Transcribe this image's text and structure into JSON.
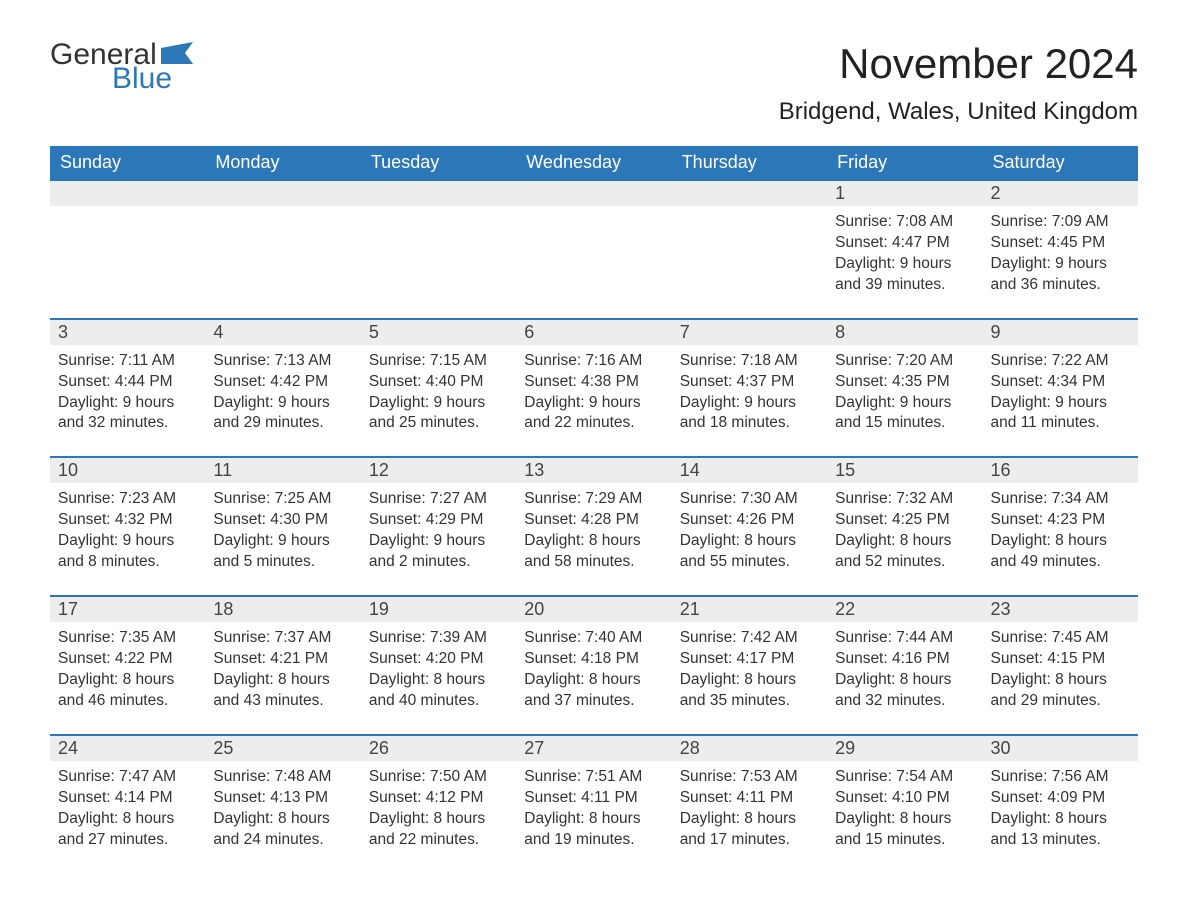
{
  "logo": {
    "text1": "General",
    "text2": "Blue",
    "shape_color": "#2c77b8",
    "text1_color": "#333333",
    "text2_color": "#2c77b8"
  },
  "title": "November 2024",
  "location": "Bridgend, Wales, United Kingdom",
  "header_bg": "#2c77b8",
  "header_fg": "#ffffff",
  "daynum_bg": "#ededed",
  "border_color": "#2c77b8",
  "columns": [
    "Sunday",
    "Monday",
    "Tuesday",
    "Wednesday",
    "Thursday",
    "Friday",
    "Saturday"
  ],
  "weeks": [
    [
      null,
      null,
      null,
      null,
      null,
      {
        "n": "1",
        "sr": "Sunrise: 7:08 AM",
        "ss": "Sunset: 4:47 PM",
        "d1": "Daylight: 9 hours",
        "d2": "and 39 minutes."
      },
      {
        "n": "2",
        "sr": "Sunrise: 7:09 AM",
        "ss": "Sunset: 4:45 PM",
        "d1": "Daylight: 9 hours",
        "d2": "and 36 minutes."
      }
    ],
    [
      {
        "n": "3",
        "sr": "Sunrise: 7:11 AM",
        "ss": "Sunset: 4:44 PM",
        "d1": "Daylight: 9 hours",
        "d2": "and 32 minutes."
      },
      {
        "n": "4",
        "sr": "Sunrise: 7:13 AM",
        "ss": "Sunset: 4:42 PM",
        "d1": "Daylight: 9 hours",
        "d2": "and 29 minutes."
      },
      {
        "n": "5",
        "sr": "Sunrise: 7:15 AM",
        "ss": "Sunset: 4:40 PM",
        "d1": "Daylight: 9 hours",
        "d2": "and 25 minutes."
      },
      {
        "n": "6",
        "sr": "Sunrise: 7:16 AM",
        "ss": "Sunset: 4:38 PM",
        "d1": "Daylight: 9 hours",
        "d2": "and 22 minutes."
      },
      {
        "n": "7",
        "sr": "Sunrise: 7:18 AM",
        "ss": "Sunset: 4:37 PM",
        "d1": "Daylight: 9 hours",
        "d2": "and 18 minutes."
      },
      {
        "n": "8",
        "sr": "Sunrise: 7:20 AM",
        "ss": "Sunset: 4:35 PM",
        "d1": "Daylight: 9 hours",
        "d2": "and 15 minutes."
      },
      {
        "n": "9",
        "sr": "Sunrise: 7:22 AM",
        "ss": "Sunset: 4:34 PM",
        "d1": "Daylight: 9 hours",
        "d2": "and 11 minutes."
      }
    ],
    [
      {
        "n": "10",
        "sr": "Sunrise: 7:23 AM",
        "ss": "Sunset: 4:32 PM",
        "d1": "Daylight: 9 hours",
        "d2": "and 8 minutes."
      },
      {
        "n": "11",
        "sr": "Sunrise: 7:25 AM",
        "ss": "Sunset: 4:30 PM",
        "d1": "Daylight: 9 hours",
        "d2": "and 5 minutes."
      },
      {
        "n": "12",
        "sr": "Sunrise: 7:27 AM",
        "ss": "Sunset: 4:29 PM",
        "d1": "Daylight: 9 hours",
        "d2": "and 2 minutes."
      },
      {
        "n": "13",
        "sr": "Sunrise: 7:29 AM",
        "ss": "Sunset: 4:28 PM",
        "d1": "Daylight: 8 hours",
        "d2": "and 58 minutes."
      },
      {
        "n": "14",
        "sr": "Sunrise: 7:30 AM",
        "ss": "Sunset: 4:26 PM",
        "d1": "Daylight: 8 hours",
        "d2": "and 55 minutes."
      },
      {
        "n": "15",
        "sr": "Sunrise: 7:32 AM",
        "ss": "Sunset: 4:25 PM",
        "d1": "Daylight: 8 hours",
        "d2": "and 52 minutes."
      },
      {
        "n": "16",
        "sr": "Sunrise: 7:34 AM",
        "ss": "Sunset: 4:23 PM",
        "d1": "Daylight: 8 hours",
        "d2": "and 49 minutes."
      }
    ],
    [
      {
        "n": "17",
        "sr": "Sunrise: 7:35 AM",
        "ss": "Sunset: 4:22 PM",
        "d1": "Daylight: 8 hours",
        "d2": "and 46 minutes."
      },
      {
        "n": "18",
        "sr": "Sunrise: 7:37 AM",
        "ss": "Sunset: 4:21 PM",
        "d1": "Daylight: 8 hours",
        "d2": "and 43 minutes."
      },
      {
        "n": "19",
        "sr": "Sunrise: 7:39 AM",
        "ss": "Sunset: 4:20 PM",
        "d1": "Daylight: 8 hours",
        "d2": "and 40 minutes."
      },
      {
        "n": "20",
        "sr": "Sunrise: 7:40 AM",
        "ss": "Sunset: 4:18 PM",
        "d1": "Daylight: 8 hours",
        "d2": "and 37 minutes."
      },
      {
        "n": "21",
        "sr": "Sunrise: 7:42 AM",
        "ss": "Sunset: 4:17 PM",
        "d1": "Daylight: 8 hours",
        "d2": "and 35 minutes."
      },
      {
        "n": "22",
        "sr": "Sunrise: 7:44 AM",
        "ss": "Sunset: 4:16 PM",
        "d1": "Daylight: 8 hours",
        "d2": "and 32 minutes."
      },
      {
        "n": "23",
        "sr": "Sunrise: 7:45 AM",
        "ss": "Sunset: 4:15 PM",
        "d1": "Daylight: 8 hours",
        "d2": "and 29 minutes."
      }
    ],
    [
      {
        "n": "24",
        "sr": "Sunrise: 7:47 AM",
        "ss": "Sunset: 4:14 PM",
        "d1": "Daylight: 8 hours",
        "d2": "and 27 minutes."
      },
      {
        "n": "25",
        "sr": "Sunrise: 7:48 AM",
        "ss": "Sunset: 4:13 PM",
        "d1": "Daylight: 8 hours",
        "d2": "and 24 minutes."
      },
      {
        "n": "26",
        "sr": "Sunrise: 7:50 AM",
        "ss": "Sunset: 4:12 PM",
        "d1": "Daylight: 8 hours",
        "d2": "and 22 minutes."
      },
      {
        "n": "27",
        "sr": "Sunrise: 7:51 AM",
        "ss": "Sunset: 4:11 PM",
        "d1": "Daylight: 8 hours",
        "d2": "and 19 minutes."
      },
      {
        "n": "28",
        "sr": "Sunrise: 7:53 AM",
        "ss": "Sunset: 4:11 PM",
        "d1": "Daylight: 8 hours",
        "d2": "and 17 minutes."
      },
      {
        "n": "29",
        "sr": "Sunrise: 7:54 AM",
        "ss": "Sunset: 4:10 PM",
        "d1": "Daylight: 8 hours",
        "d2": "and 15 minutes."
      },
      {
        "n": "30",
        "sr": "Sunrise: 7:56 AM",
        "ss": "Sunset: 4:09 PM",
        "d1": "Daylight: 8 hours",
        "d2": "and 13 minutes."
      }
    ]
  ]
}
